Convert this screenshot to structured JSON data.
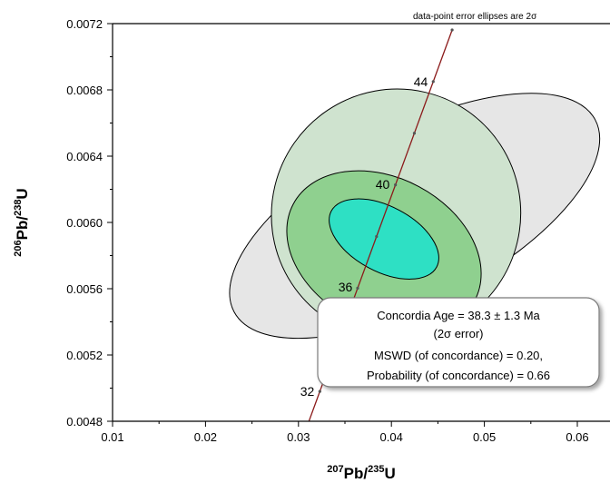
{
  "chart_data": {
    "type": "scatter",
    "subtype": "concordia-diagram",
    "xlabel": {
      "sup": "207",
      "base": "Pb/",
      "sup2": "235",
      "end": "U"
    },
    "ylabel": {
      "sup": "206",
      "base": "Pb/",
      "sup2": "238",
      "end": "U"
    },
    "xlim": [
      0.01,
      0.065
    ],
    "ylim": [
      0.0048,
      0.0072
    ],
    "x_ticks": [
      0.01,
      0.02,
      0.03,
      0.04,
      0.05,
      0.06
    ],
    "x_tick_labels": [
      "0.01",
      "0.02",
      "0.03",
      "0.04",
      "0.05",
      "0.06"
    ],
    "y_ticks": [
      0.0048,
      0.0052,
      0.0056,
      0.006,
      0.0064,
      0.0068,
      0.0072
    ],
    "y_tick_labels": [
      "0.0048",
      "0.0052",
      "0.0056",
      "0.0060",
      "0.0064",
      "0.0068",
      "0.0072"
    ],
    "grid": false,
    "note": "data-point error ellipses are 2σ",
    "concordia_curve": {
      "color": "#8b1a1a",
      "age_labels": [
        {
          "age": 32,
          "label": "32",
          "x": 0.0323,
          "y": 0.00498
        },
        {
          "age": 36,
          "label": "36",
          "x": 0.0364,
          "y": 0.00561
        },
        {
          "age": 40,
          "label": "40",
          "x": 0.0404,
          "y": 0.00623
        },
        {
          "age": 44,
          "label": "44",
          "x": 0.0445,
          "y": 0.00685
        }
      ]
    },
    "ellipses": [
      {
        "name": "outer-gray",
        "cx": 0.0425,
        "cy": 0.00604,
        "rx": 0.022,
        "ry": 0.00052,
        "rotate": -28,
        "fill": "#e6e6e6"
      },
      {
        "name": "light-green",
        "cx": 0.0405,
        "cy": 0.00605,
        "rx": 0.0135,
        "ry": 0.00075,
        "rotate": -55,
        "fill": "#cfe3cf"
      },
      {
        "name": "mid-green",
        "cx": 0.0392,
        "cy": 0.00582,
        "rx": 0.008,
        "ry": 0.00062,
        "rotate": -62,
        "fill": "#8fd08f"
      },
      {
        "name": "concordia-age-ellipse",
        "cx": 0.0392,
        "cy": 0.0059,
        "rx": 0.0035,
        "ry": 0.00036,
        "rotate": -62,
        "fill": "#2ee0c4"
      }
    ],
    "result_box": {
      "line1": "Concordia Age = 38.3 ± 1.3 Ma",
      "line2": "(2σ error)",
      "line3": "MSWD (of concordance) = 0.20,",
      "line4": "Probability (of concordance) = 0.66"
    }
  }
}
